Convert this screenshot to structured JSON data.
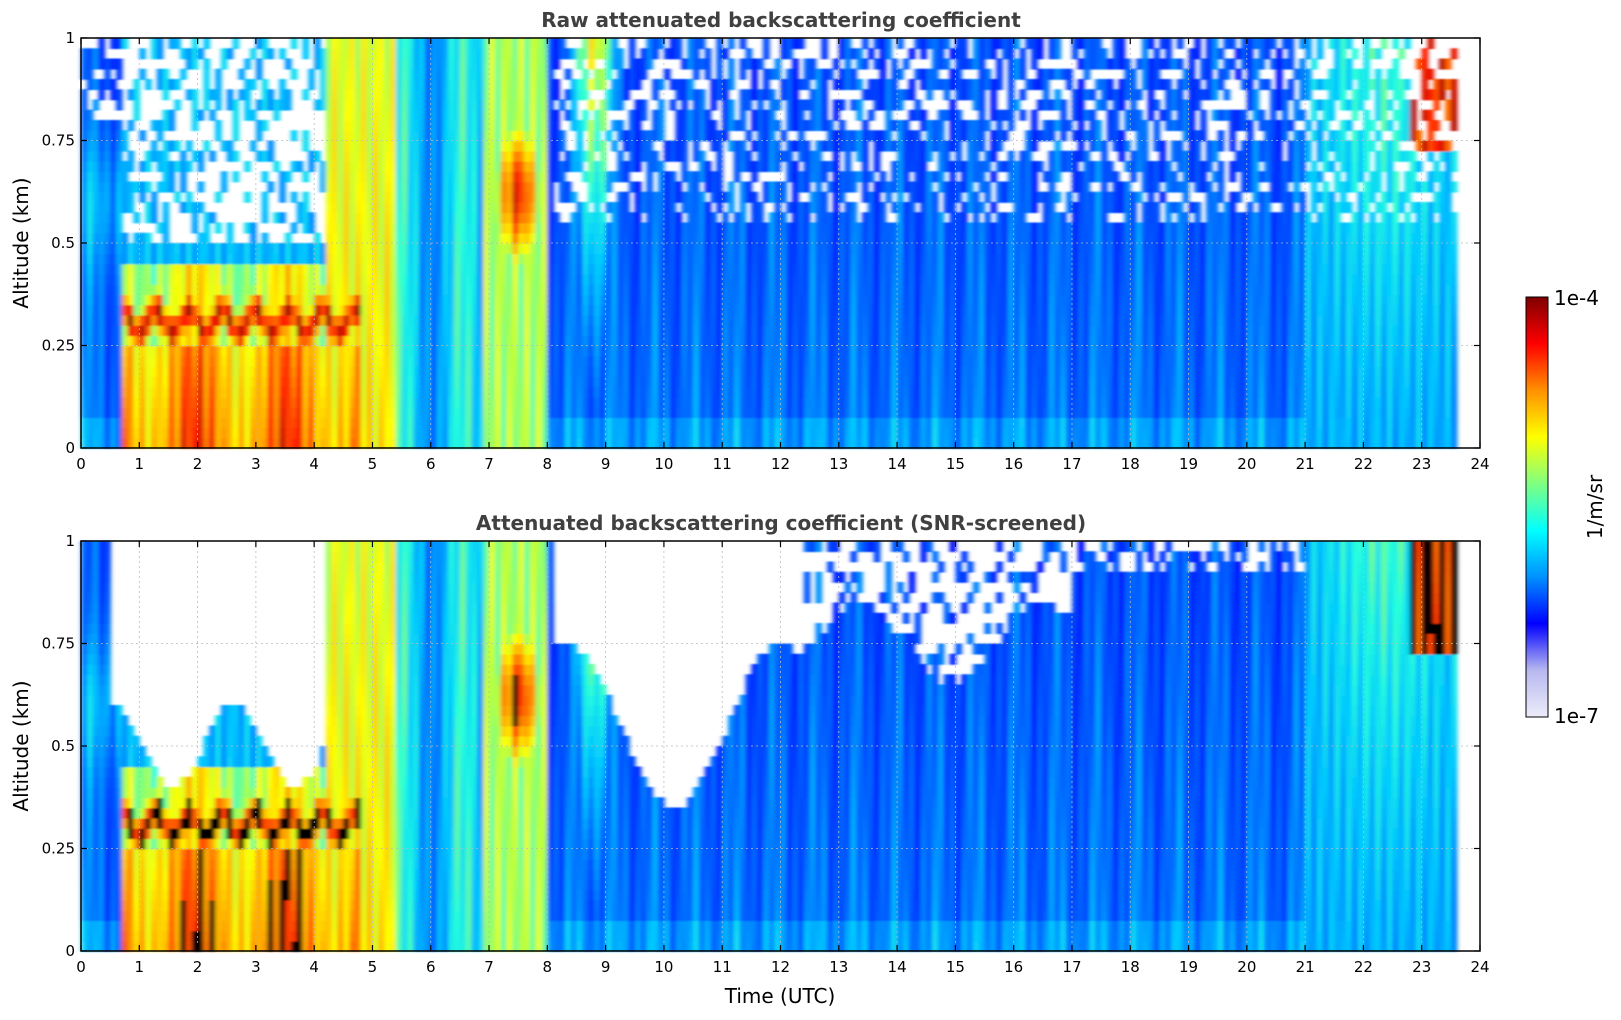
{
  "chart_data": [
    {
      "type": "heatmap",
      "title": "Raw attenuated backscattering coefficient",
      "xlabel": "",
      "ylabel": "Altitude (km)",
      "xlim": [
        0,
        24
      ],
      "ylim": [
        0,
        1
      ],
      "x_ticks": [
        "0",
        "1",
        "2",
        "3",
        "4",
        "5",
        "6",
        "7",
        "8",
        "9",
        "10",
        "11",
        "12",
        "13",
        "14",
        "15",
        "16",
        "17",
        "18",
        "19",
        "20",
        "21",
        "22",
        "23",
        "24"
      ],
      "y_ticks": [
        "0",
        "0.25",
        "0.5",
        "0.75",
        "1"
      ],
      "grid": true,
      "data_extent_hours": [
        0,
        23.6
      ],
      "colormap": "jet",
      "color_scale": "log",
      "screened": false
    },
    {
      "type": "heatmap",
      "title": "Attenuated backscattering coefficient (SNR-screened)",
      "xlabel": "Time (UTC)",
      "ylabel": "Altitude (km)",
      "xlim": [
        0,
        24
      ],
      "ylim": [
        0,
        1
      ],
      "x_ticks": [
        "0",
        "1",
        "2",
        "3",
        "4",
        "5",
        "6",
        "7",
        "8",
        "9",
        "10",
        "11",
        "12",
        "13",
        "14",
        "15",
        "16",
        "17",
        "18",
        "19",
        "20",
        "21",
        "22",
        "23",
        "24"
      ],
      "y_ticks": [
        "0",
        "0.25",
        "0.5",
        "0.75",
        "1"
      ],
      "grid": true,
      "data_extent_hours": [
        0,
        23.6
      ],
      "colormap": "jet",
      "color_scale": "log",
      "screened": true
    }
  ],
  "colorbar": {
    "label": "1/m/sr",
    "max_label": "1e-4",
    "min_label": "1e-7",
    "colors": [
      "#ececfa",
      "#b8b8f0",
      "#0000ff",
      "#0090ff",
      "#00ffff",
      "#80ff80",
      "#ffff00",
      "#ff9000",
      "#ff0000",
      "#800000"
    ]
  }
}
